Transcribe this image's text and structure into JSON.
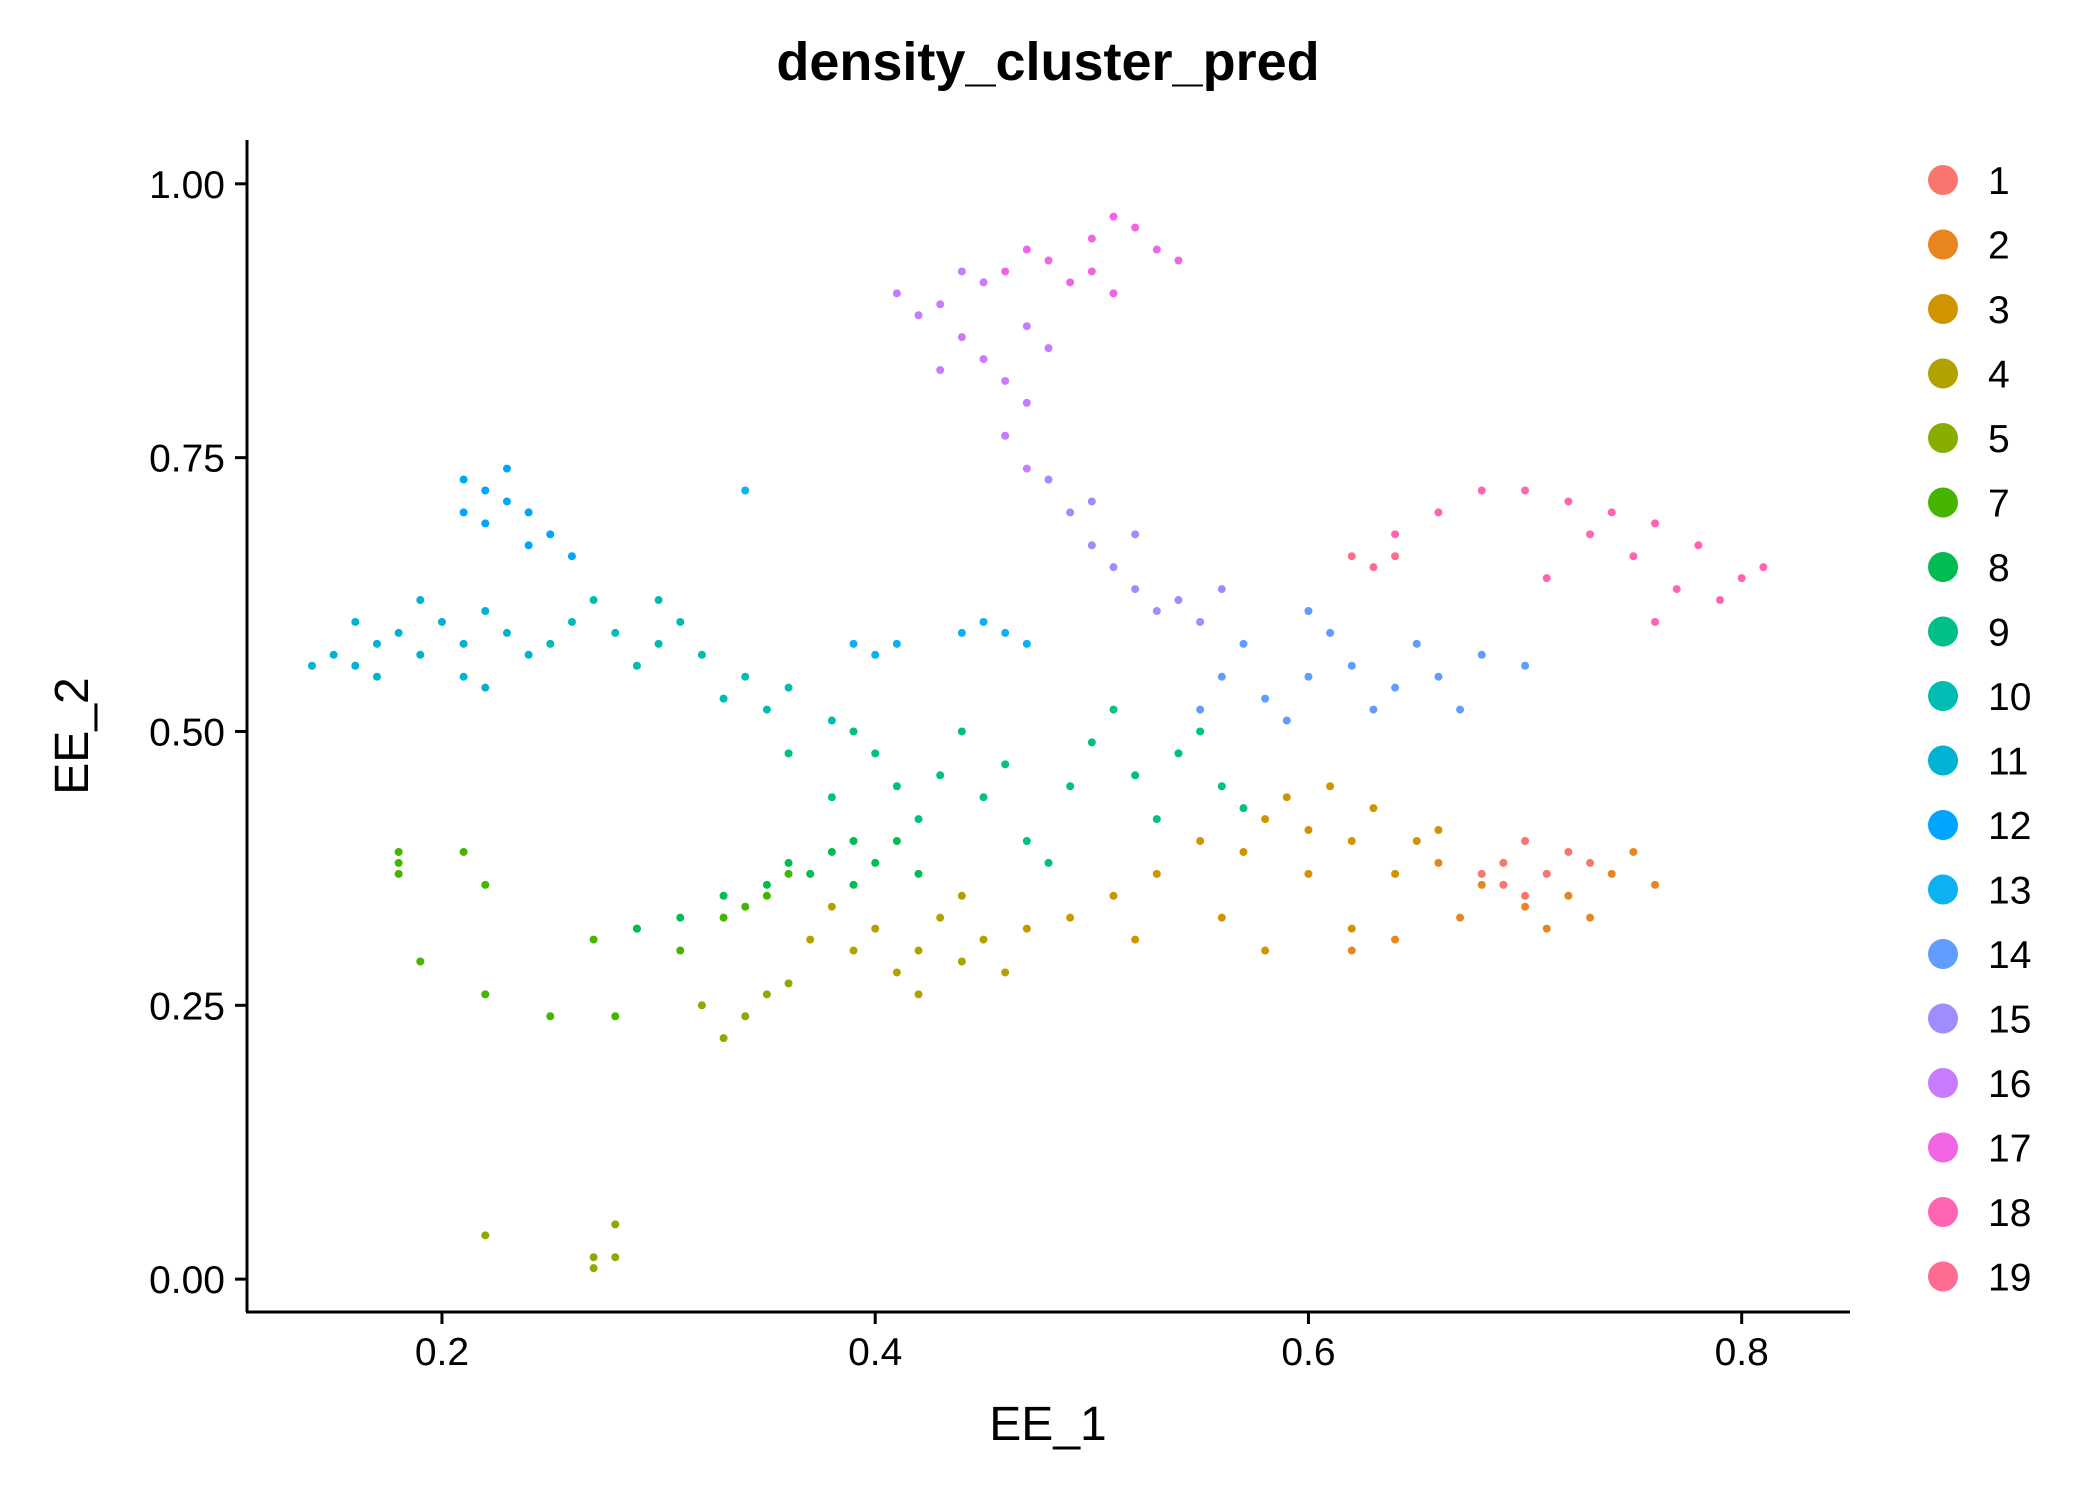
{
  "chart_data": {
    "type": "scatter",
    "title": "density_cluster_pred",
    "xlabel": "EE_1",
    "ylabel": "EE_2",
    "xlim": [
      0.11,
      0.85
    ],
    "ylim": [
      -0.03,
      1.04
    ],
    "x_ticks": [
      0.2,
      0.4,
      0.6,
      0.8
    ],
    "x_tick_labels": [
      "0.2",
      "0.4",
      "0.6",
      "0.8"
    ],
    "y_ticks": [
      0.0,
      0.25,
      0.5,
      0.75,
      1.0
    ],
    "y_tick_labels": [
      "0.00",
      "0.25",
      "0.50",
      "0.75",
      "1.00"
    ],
    "grid": false,
    "legend_position": "right",
    "series": [
      {
        "name": "1",
        "color": "#F8766D",
        "points": [
          [
            0.69,
            0.38
          ],
          [
            0.7,
            0.4
          ],
          [
            0.71,
            0.37
          ],
          [
            0.69,
            0.36
          ],
          [
            0.72,
            0.39
          ],
          [
            0.7,
            0.35
          ],
          [
            0.68,
            0.37
          ],
          [
            0.73,
            0.38
          ]
        ]
      },
      {
        "name": "2",
        "color": "#E7851E",
        "points": [
          [
            0.66,
            0.38
          ],
          [
            0.68,
            0.36
          ],
          [
            0.7,
            0.34
          ],
          [
            0.72,
            0.35
          ],
          [
            0.74,
            0.37
          ],
          [
            0.76,
            0.36
          ],
          [
            0.75,
            0.39
          ],
          [
            0.73,
            0.33
          ],
          [
            0.71,
            0.32
          ],
          [
            0.67,
            0.33
          ],
          [
            0.64,
            0.31
          ],
          [
            0.62,
            0.3
          ]
        ]
      },
      {
        "name": "3",
        "color": "#D09400",
        "points": [
          [
            0.58,
            0.42
          ],
          [
            0.6,
            0.41
          ],
          [
            0.62,
            0.4
          ],
          [
            0.59,
            0.44
          ],
          [
            0.57,
            0.39
          ],
          [
            0.55,
            0.4
          ],
          [
            0.53,
            0.37
          ],
          [
            0.51,
            0.35
          ],
          [
            0.49,
            0.33
          ],
          [
            0.47,
            0.32
          ],
          [
            0.61,
            0.45
          ],
          [
            0.63,
            0.43
          ],
          [
            0.65,
            0.4
          ],
          [
            0.6,
            0.37
          ],
          [
            0.56,
            0.33
          ],
          [
            0.52,
            0.31
          ],
          [
            0.58,
            0.3
          ],
          [
            0.62,
            0.32
          ],
          [
            0.64,
            0.37
          ],
          [
            0.66,
            0.41
          ]
        ]
      },
      {
        "name": "4",
        "color": "#B2A100",
        "points": [
          [
            0.4,
            0.32
          ],
          [
            0.42,
            0.3
          ],
          [
            0.44,
            0.29
          ],
          [
            0.41,
            0.28
          ],
          [
            0.43,
            0.33
          ],
          [
            0.45,
            0.31
          ],
          [
            0.39,
            0.3
          ],
          [
            0.38,
            0.34
          ],
          [
            0.46,
            0.28
          ],
          [
            0.42,
            0.26
          ],
          [
            0.37,
            0.31
          ],
          [
            0.44,
            0.35
          ]
        ]
      },
      {
        "name": "5",
        "color": "#89AC00",
        "points": [
          [
            0.27,
            0.02
          ],
          [
            0.27,
            0.01
          ],
          [
            0.28,
            0.02
          ],
          [
            0.34,
            0.24
          ],
          [
            0.33,
            0.22
          ],
          [
            0.35,
            0.26
          ],
          [
            0.32,
            0.25
          ],
          [
            0.36,
            0.27
          ],
          [
            0.22,
            0.04
          ],
          [
            0.28,
            0.05
          ]
        ]
      },
      {
        "name": "7",
        "color": "#45B500",
        "points": [
          [
            0.18,
            0.38
          ],
          [
            0.18,
            0.39
          ],
          [
            0.18,
            0.37
          ],
          [
            0.21,
            0.39
          ],
          [
            0.19,
            0.29
          ],
          [
            0.22,
            0.26
          ],
          [
            0.25,
            0.24
          ],
          [
            0.27,
            0.31
          ],
          [
            0.29,
            0.32
          ],
          [
            0.31,
            0.3
          ],
          [
            0.33,
            0.33
          ],
          [
            0.35,
            0.35
          ],
          [
            0.36,
            0.37
          ],
          [
            0.34,
            0.34
          ],
          [
            0.28,
            0.24
          ],
          [
            0.22,
            0.36
          ]
        ]
      },
      {
        "name": "8",
        "color": "#00BC51",
        "points": [
          [
            0.38,
            0.39
          ],
          [
            0.39,
            0.4
          ],
          [
            0.4,
            0.38
          ],
          [
            0.37,
            0.37
          ],
          [
            0.41,
            0.4
          ],
          [
            0.39,
            0.36
          ],
          [
            0.36,
            0.38
          ],
          [
            0.42,
            0.37
          ],
          [
            0.35,
            0.36
          ],
          [
            0.33,
            0.35
          ],
          [
            0.31,
            0.33
          ],
          [
            0.29,
            0.32
          ]
        ]
      },
      {
        "name": "9",
        "color": "#00C087",
        "points": [
          [
            0.4,
            0.48
          ],
          [
            0.43,
            0.46
          ],
          [
            0.46,
            0.47
          ],
          [
            0.49,
            0.45
          ],
          [
            0.52,
            0.46
          ],
          [
            0.55,
            0.5
          ],
          [
            0.5,
            0.49
          ],
          [
            0.45,
            0.44
          ],
          [
            0.42,
            0.42
          ],
          [
            0.38,
            0.44
          ],
          [
            0.36,
            0.48
          ],
          [
            0.47,
            0.4
          ],
          [
            0.53,
            0.42
          ],
          [
            0.56,
            0.45
          ],
          [
            0.44,
            0.5
          ],
          [
            0.51,
            0.52
          ],
          [
            0.39,
            0.5
          ],
          [
            0.48,
            0.38
          ],
          [
            0.54,
            0.48
          ],
          [
            0.41,
            0.45
          ],
          [
            0.57,
            0.43
          ]
        ]
      },
      {
        "name": "10",
        "color": "#00BCB2",
        "points": [
          [
            0.26,
            0.6
          ],
          [
            0.28,
            0.59
          ],
          [
            0.3,
            0.58
          ],
          [
            0.32,
            0.57
          ],
          [
            0.34,
            0.55
          ],
          [
            0.36,
            0.54
          ],
          [
            0.27,
            0.62
          ],
          [
            0.29,
            0.56
          ],
          [
            0.31,
            0.6
          ],
          [
            0.33,
            0.53
          ],
          [
            0.25,
            0.58
          ],
          [
            0.35,
            0.52
          ],
          [
            0.38,
            0.51
          ],
          [
            0.3,
            0.62
          ]
        ]
      },
      {
        "name": "11",
        "color": "#00B3D2",
        "points": [
          [
            0.14,
            0.56
          ],
          [
            0.15,
            0.57
          ],
          [
            0.16,
            0.56
          ],
          [
            0.17,
            0.58
          ],
          [
            0.18,
            0.59
          ],
          [
            0.19,
            0.57
          ],
          [
            0.2,
            0.6
          ],
          [
            0.21,
            0.58
          ],
          [
            0.22,
            0.61
          ],
          [
            0.23,
            0.59
          ],
          [
            0.17,
            0.55
          ],
          [
            0.19,
            0.62
          ],
          [
            0.21,
            0.55
          ],
          [
            0.24,
            0.57
          ],
          [
            0.16,
            0.6
          ],
          [
            0.22,
            0.54
          ]
        ]
      },
      {
        "name": "12",
        "color": "#00A5FF",
        "points": [
          [
            0.21,
            0.73
          ],
          [
            0.22,
            0.72
          ],
          [
            0.23,
            0.71
          ],
          [
            0.24,
            0.7
          ],
          [
            0.25,
            0.68
          ],
          [
            0.26,
            0.66
          ],
          [
            0.22,
            0.69
          ],
          [
            0.24,
            0.67
          ],
          [
            0.23,
            0.74
          ],
          [
            0.21,
            0.7
          ]
        ]
      },
      {
        "name": "13",
        "color": "#0BB1F0",
        "points": [
          [
            0.39,
            0.58
          ],
          [
            0.4,
            0.57
          ],
          [
            0.41,
            0.58
          ],
          [
            0.44,
            0.59
          ],
          [
            0.45,
            0.6
          ],
          [
            0.46,
            0.59
          ],
          [
            0.47,
            0.58
          ],
          [
            0.34,
            0.72
          ]
        ]
      },
      {
        "name": "14",
        "color": "#619CFF",
        "points": [
          [
            0.56,
            0.55
          ],
          [
            0.58,
            0.53
          ],
          [
            0.6,
            0.55
          ],
          [
            0.62,
            0.56
          ],
          [
            0.64,
            0.54
          ],
          [
            0.66,
            0.55
          ],
          [
            0.63,
            0.52
          ],
          [
            0.59,
            0.51
          ],
          [
            0.57,
            0.58
          ],
          [
            0.61,
            0.59
          ],
          [
            0.65,
            0.58
          ],
          [
            0.68,
            0.57
          ],
          [
            0.7,
            0.56
          ],
          [
            0.55,
            0.52
          ],
          [
            0.6,
            0.61
          ],
          [
            0.67,
            0.52
          ]
        ]
      },
      {
        "name": "15",
        "color": "#9F8CFF",
        "points": [
          [
            0.49,
            0.7
          ],
          [
            0.5,
            0.67
          ],
          [
            0.51,
            0.65
          ],
          [
            0.52,
            0.63
          ],
          [
            0.53,
            0.61
          ],
          [
            0.54,
            0.62
          ],
          [
            0.55,
            0.6
          ],
          [
            0.48,
            0.73
          ],
          [
            0.5,
            0.71
          ],
          [
            0.56,
            0.63
          ],
          [
            0.52,
            0.68
          ]
        ]
      },
      {
        "name": "16",
        "color": "#C77CFF",
        "points": [
          [
            0.43,
            0.89
          ],
          [
            0.44,
            0.86
          ],
          [
            0.45,
            0.84
          ],
          [
            0.46,
            0.82
          ],
          [
            0.47,
            0.8
          ],
          [
            0.45,
            0.91
          ],
          [
            0.42,
            0.88
          ],
          [
            0.44,
            0.92
          ],
          [
            0.47,
            0.87
          ],
          [
            0.46,
            0.77
          ],
          [
            0.43,
            0.83
          ],
          [
            0.48,
            0.85
          ],
          [
            0.41,
            0.9
          ],
          [
            0.47,
            0.74
          ]
        ]
      },
      {
        "name": "17",
        "color": "#F064E6",
        "points": [
          [
            0.48,
            0.93
          ],
          [
            0.5,
            0.95
          ],
          [
            0.51,
            0.97
          ],
          [
            0.49,
            0.91
          ],
          [
            0.52,
            0.96
          ],
          [
            0.47,
            0.94
          ],
          [
            0.5,
            0.92
          ],
          [
            0.53,
            0.94
          ],
          [
            0.46,
            0.92
          ],
          [
            0.51,
            0.9
          ],
          [
            0.54,
            0.93
          ]
        ]
      },
      {
        "name": "18",
        "color": "#FF64B0",
        "points": [
          [
            0.7,
            0.72
          ],
          [
            0.72,
            0.71
          ],
          [
            0.74,
            0.7
          ],
          [
            0.76,
            0.69
          ],
          [
            0.78,
            0.67
          ],
          [
            0.8,
            0.64
          ],
          [
            0.79,
            0.62
          ],
          [
            0.77,
            0.63
          ],
          [
            0.75,
            0.66
          ],
          [
            0.73,
            0.68
          ],
          [
            0.71,
            0.64
          ],
          [
            0.81,
            0.65
          ],
          [
            0.76,
            0.6
          ],
          [
            0.68,
            0.72
          ],
          [
            0.66,
            0.7
          ],
          [
            0.64,
            0.68
          ]
        ]
      },
      {
        "name": "19",
        "color": "#FF6C91",
        "points": [
          [
            0.62,
            0.66
          ],
          [
            0.63,
            0.65
          ],
          [
            0.64,
            0.66
          ]
        ]
      }
    ]
  }
}
